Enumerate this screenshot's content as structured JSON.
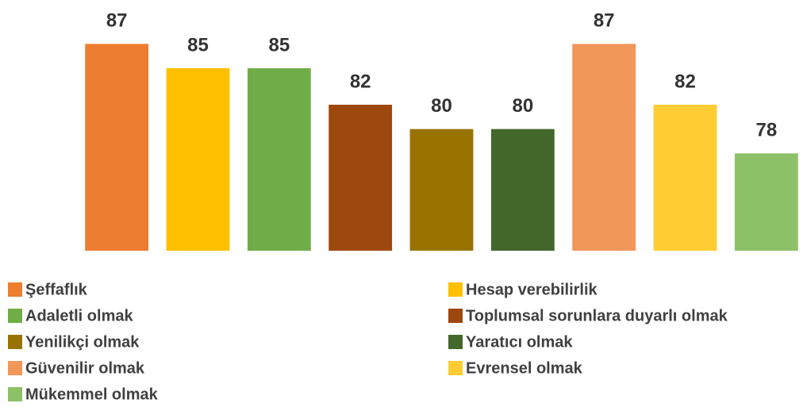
{
  "chart_data": {
    "type": "bar",
    "ylim": [
      70,
      88
    ],
    "series": [
      {
        "name": "Şeffaflık",
        "color": "#ed7d31",
        "values": [
          87
        ]
      },
      {
        "name": "Hesap verebilirlik",
        "color": "#ffc000",
        "values": [
          85
        ]
      },
      {
        "name": "Adaletli olmak",
        "color": "#70ad47",
        "values": [
          85
        ]
      },
      {
        "name": "Toplumsal sorunlara duyarlı olmak",
        "color": "#9e480e",
        "values": [
          82
        ]
      },
      {
        "name": "Yenilikçi olmak",
        "color": "#997300",
        "values": [
          80
        ]
      },
      {
        "name": "Yaratıcı olmak",
        "color": "#43682b",
        "values": [
          80
        ]
      },
      {
        "name": "Güvenilir olmak",
        "color": "#f1975a",
        "values": [
          87
        ]
      },
      {
        "name": "Evrensel olmak",
        "color": "#ffcd33",
        "values": [
          82
        ]
      },
      {
        "name": "Mükemmel olmak",
        "color": "#8cc168",
        "values": [
          78
        ]
      }
    ]
  }
}
